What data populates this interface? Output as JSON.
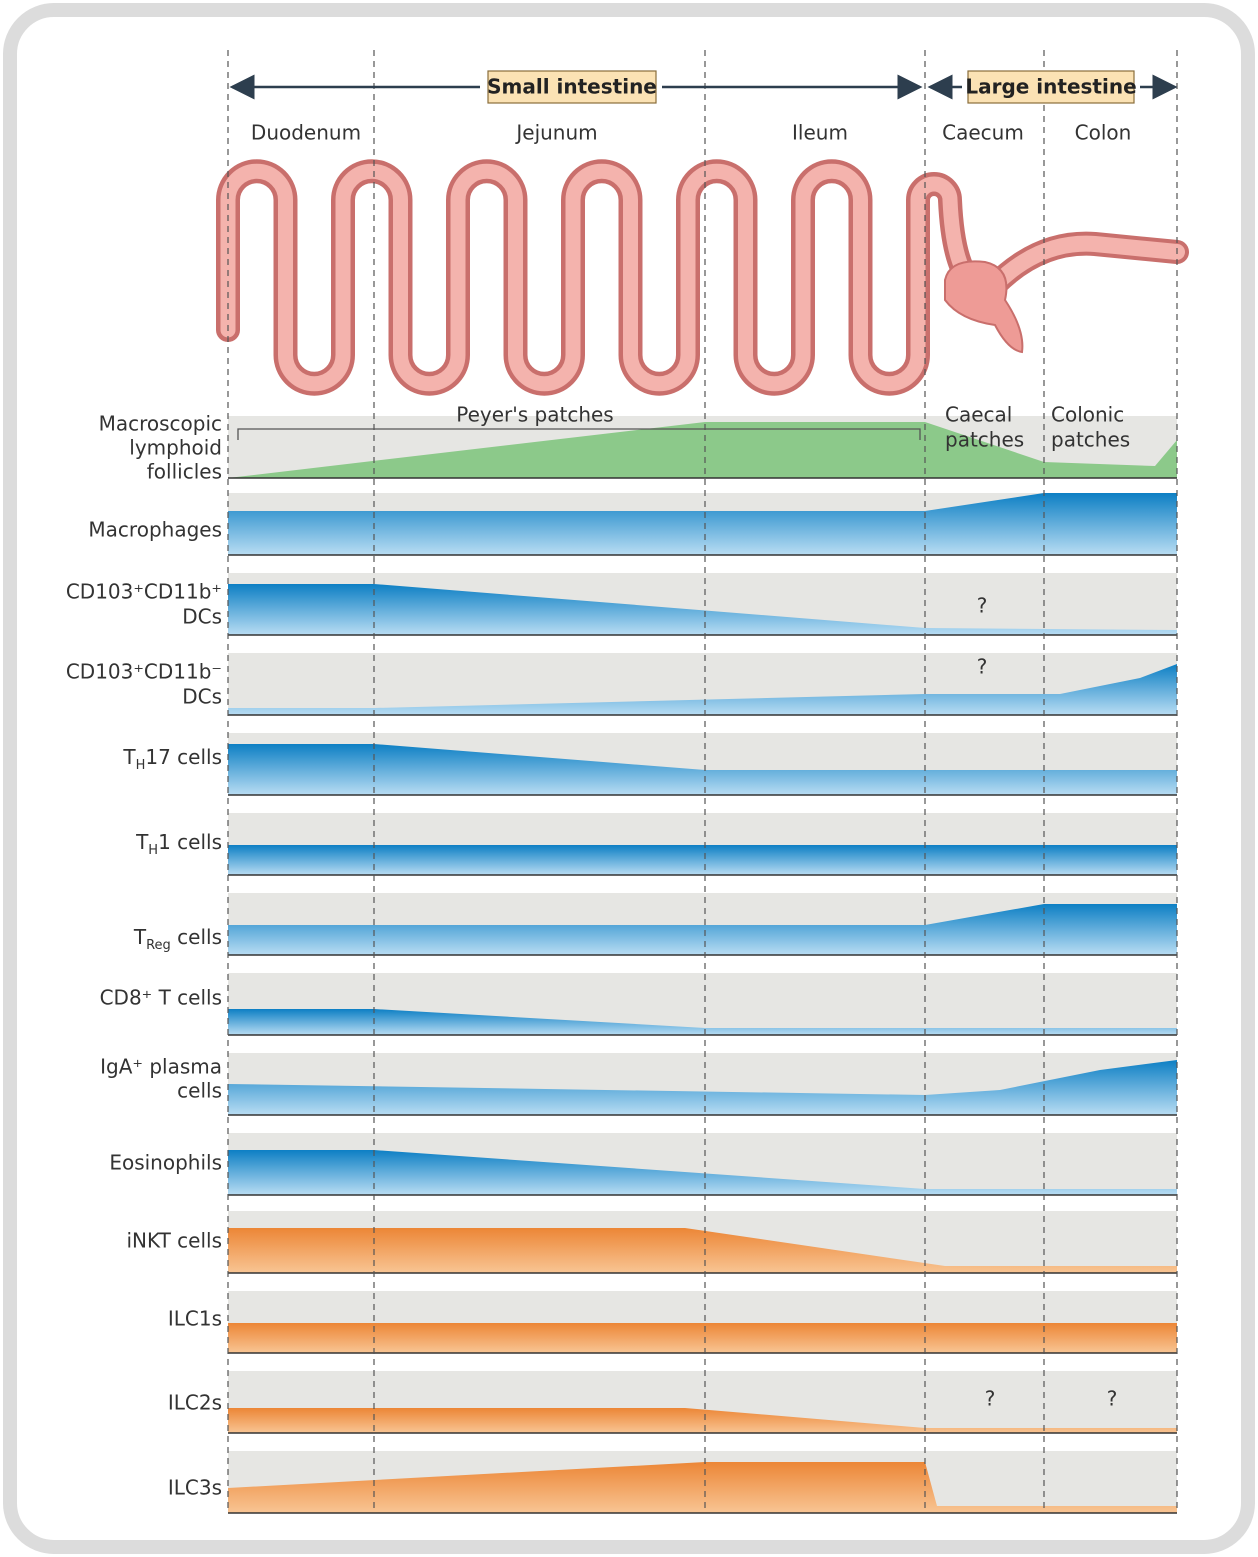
{
  "header": {
    "small_intestine": "Small intestine",
    "large_intestine": "Large intestine"
  },
  "segments": [
    "Duodenum",
    "Jejunum",
    "Ileum",
    "Caecum",
    "Colon"
  ],
  "annotations": {
    "peyers_patches": "Peyer's patches",
    "caecal_patches": [
      "Caecal",
      "patches"
    ],
    "colonic_patches": [
      "Colonic",
      "patches"
    ],
    "unknown": [
      "?",
      "?",
      "?",
      "?"
    ]
  },
  "rows": [
    {
      "label": [
        "Macroscopic",
        "lymphoid",
        "follicles"
      ]
    },
    {
      "label": [
        "Macrophages"
      ]
    },
    {
      "label": [
        "CD103⁺CD11b⁺",
        "DCs"
      ]
    },
    {
      "label": [
        "CD103⁺CD11b⁻",
        "DCs"
      ]
    },
    {
      "label": [
        "T",
        "H",
        "17 cells"
      ]
    },
    {
      "label": [
        "T",
        "H",
        "1 cells"
      ]
    },
    {
      "label": [
        "T",
        "Reg",
        " cells"
      ]
    },
    {
      "label": [
        "CD8⁺ T cells"
      ]
    },
    {
      "label": [
        "IgA⁺ plasma",
        "cells"
      ]
    },
    {
      "label": [
        "Eosinophils"
      ]
    },
    {
      "label": [
        "iNKT cells"
      ]
    },
    {
      "label": [
        "ILC1s"
      ]
    },
    {
      "label": [
        "ILC2s"
      ]
    },
    {
      "label": [
        "ILC3s"
      ]
    }
  ]
}
